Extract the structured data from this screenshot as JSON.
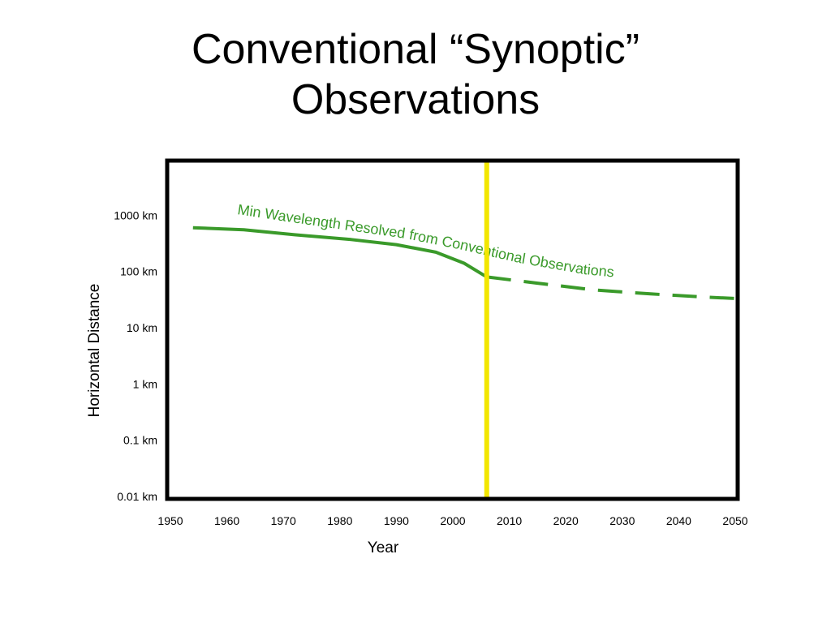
{
  "slide": {
    "title_line1": "Conventional “Synoptic”",
    "title_line2": "Observations"
  },
  "colors": {
    "series": "#3a9a2a",
    "marker": "#f2e600",
    "axes": "#000000"
  },
  "chart_data": {
    "type": "line",
    "title": "",
    "xlabel": "Year",
    "ylabel": "Horizontal Distance",
    "xlim": [
      1950,
      2050
    ],
    "ylim": [
      0.01,
      10000
    ],
    "y_scale": "log",
    "grid": false,
    "legend": "none",
    "x_ticks": [
      {
        "value": 1950,
        "label": "1950"
      },
      {
        "value": 1960,
        "label": "1960"
      },
      {
        "value": 1970,
        "label": "1970"
      },
      {
        "value": 1980,
        "label": "1980"
      },
      {
        "value": 1990,
        "label": "1990"
      },
      {
        "value": 2000,
        "label": "2000"
      },
      {
        "value": 2010,
        "label": "2010"
      },
      {
        "value": 2020,
        "label": "2020"
      },
      {
        "value": 2030,
        "label": "2030"
      },
      {
        "value": 2040,
        "label": "2040"
      },
      {
        "value": 2050,
        "label": "2050"
      }
    ],
    "y_ticks": [
      {
        "value": 1000,
        "label": "1000 km"
      },
      {
        "value": 100,
        "label": "100 km"
      },
      {
        "value": 10,
        "label": "10 km"
      },
      {
        "value": 1,
        "label": "1 km"
      },
      {
        "value": 0.1,
        "label": "0.1 km"
      },
      {
        "value": 0.01,
        "label": "0.01 km"
      }
    ],
    "series": [
      {
        "name": "Min Wavelength Resolved from Conventional Observations",
        "observed": {
          "x": [
            1954,
            1963,
            1972,
            1982,
            1990,
            1997,
            2002,
            2006
          ],
          "y": [
            600,
            550,
            450,
            370,
            300,
            220,
            140,
            80
          ]
        },
        "projected": {
          "x": [
            2006,
            2015,
            2025,
            2035,
            2045,
            2050
          ],
          "y": [
            80,
            62,
            47,
            40,
            35,
            33
          ]
        }
      }
    ],
    "annotations": [
      {
        "type": "vertical-line",
        "x": 2006
      }
    ]
  }
}
